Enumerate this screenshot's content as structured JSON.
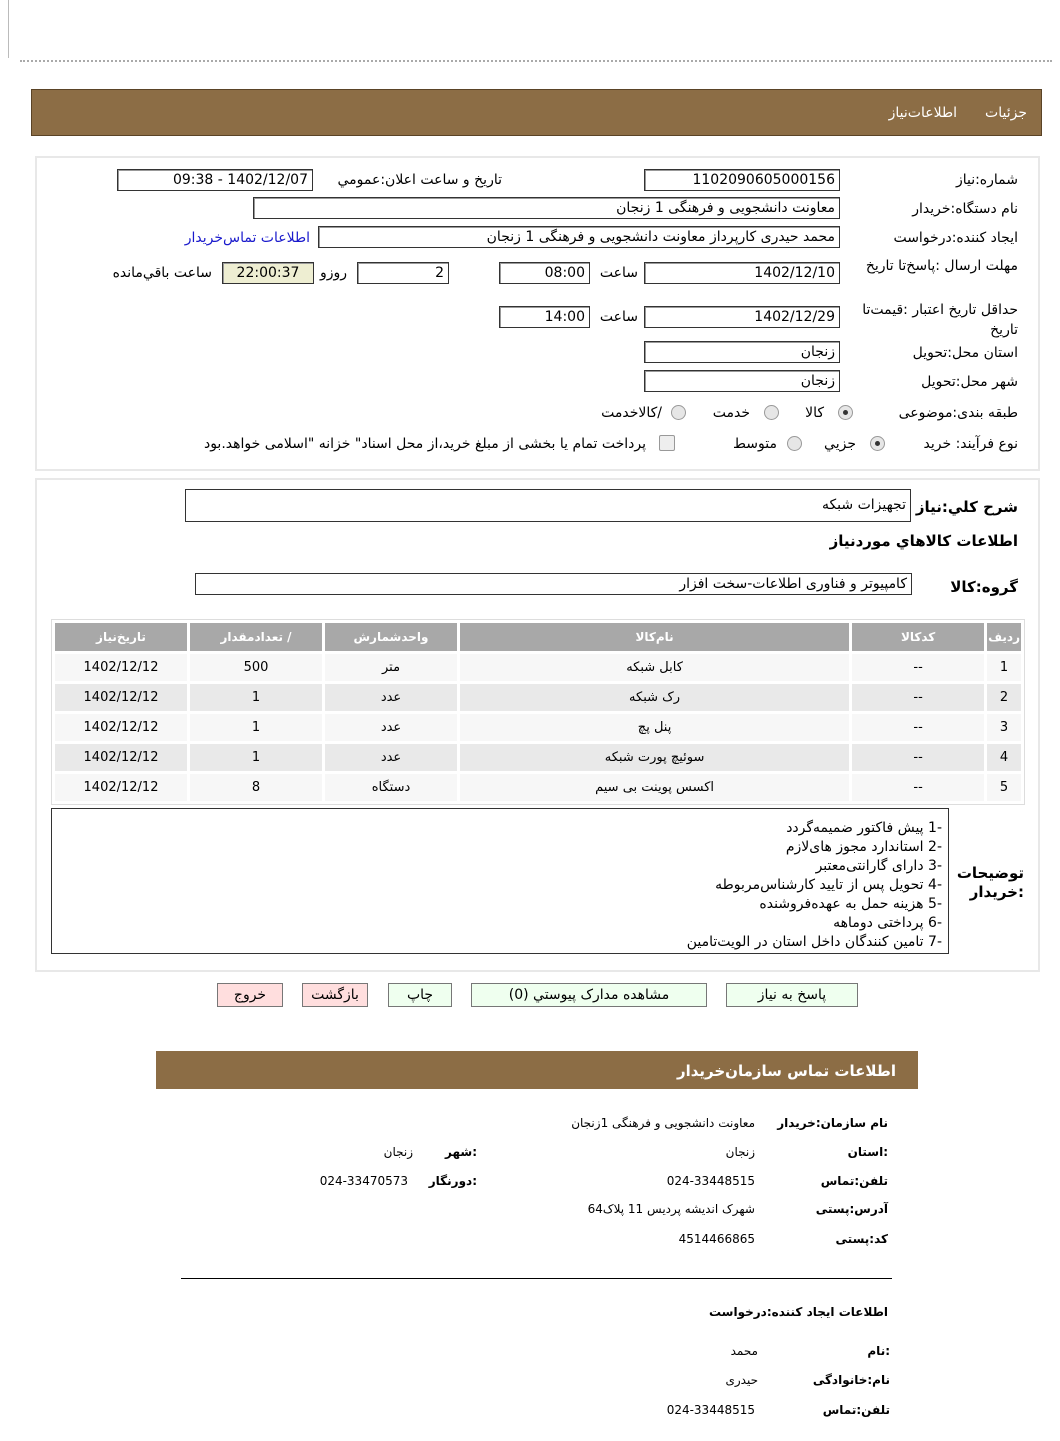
{
  "header": {
    "tab_info": "اطلاعات‌نیاز",
    "tab_details": "جزئیات"
  },
  "form": {
    "need_number_label": "شماره:نیاز",
    "need_number": "1102090605000156",
    "announce_label": "تاریخ و ساعت اعلان:عمومي",
    "announce_value": "1402/12/07 - 09:38",
    "buyer_org_label": "نام دستگاه:خریدار",
    "buyer_org": "معاونت دانشجویی و فرهنگی 1 زنجان",
    "creator_label": "ایجاد کننده:درخواست",
    "creator": "محمد حیدری کارپرداز معاونت دانشجویی و فرهنگی 1 زنجان",
    "buyer_contact_link": "اطلاعات تماس‌خریدار",
    "deadline_label": "مهلت ارسال :پاسخ‌تا تاریخ",
    "deadline_date": "1402/12/10",
    "time_label": "ساعت",
    "deadline_time": "08:00",
    "days": "2",
    "days_label": "روزو",
    "remaining": "22:00:37",
    "remaining_label": "ساعت باقي‌مانده",
    "validity_label": "حداقل تاریخ اعتبار :قیمت‌تا تاریخ",
    "validity_date": "1402/12/29",
    "validity_time": "14:00",
    "province_label": "استان محل:تحویل",
    "province": "زنجان",
    "city_label": "شهر محل:تحویل",
    "city": "زنجان",
    "category_label": "طبقه بندی:موضوعی",
    "category_options": [
      "کالا",
      "خدمت",
      "/کالاخدمت"
    ],
    "category_selected": "کالا",
    "process_label": "نوع فرآیند: خرید",
    "process_options": [
      "جزيي",
      "متوسط"
    ],
    "process_selected": "جزيي",
    "payment_note": "پرداخت تمام یا بخشی از مبلغ خرید،از محل اسناد\" خزانه \"اسلامی خواهد.بود"
  },
  "summary": {
    "label": "شرح کلي:نیاز",
    "value": "تجهیزات شبکه",
    "goods_title": "اطلاعات کالاهاي موردنیاز",
    "group_label": "گروه:کالا",
    "group_value": "کامپیوتر و فناوری اطلاعات-سخت افزار"
  },
  "table": {
    "headers": [
      "ردیف",
      "کدکالا",
      "نام‌کالا",
      "واحدشمارش",
      "/ تعدادمقدار",
      "تاریخ‌نیاز"
    ],
    "rows": [
      [
        "1",
        "--",
        "کابل شبکه",
        "متر",
        "500",
        "1402/12/12"
      ],
      [
        "2",
        "--",
        "رک شبکه",
        "عدد",
        "1",
        "1402/12/12"
      ],
      [
        "3",
        "--",
        "پنل پچ",
        "عدد",
        "1",
        "1402/12/12"
      ],
      [
        "4",
        "--",
        "سوئیچ پورت شبکه",
        "عدد",
        "1",
        "1402/12/12"
      ],
      [
        "5",
        "--",
        "اکسس پوینت بی سیم",
        "دستگاه",
        "8",
        "1402/12/12"
      ]
    ]
  },
  "notes": {
    "label": "توضیحات :خریدار",
    "lines": [
      "-1 پیش فاکتور ضمیمه‌گردد",
      "-2 استاندارد مجوز های‌لازم",
      "-3 دارای گارانتی‌معتبر",
      "-4 تحویل پس از تایید کارشناس‌مربوطه",
      "-5 هزینه حمل به عهده‌فروشنده",
      "-6 پرداختی دوماهه",
      "-7 تامین کنندگان داخل استان در الویت‌تامین"
    ]
  },
  "buttons": {
    "reply": "پاسخ به نیاز",
    "attachments": "مشاهده مدارک پیوستي (0)",
    "print": "چاپ",
    "back": "بازگشت",
    "exit": "خروج"
  },
  "contact": {
    "title": "اطلاعات  تماس سازمان‌خریدار",
    "org_label": "نام سازمان:خریدار",
    "org": "معاونت دانشجویی و فرهنگی 1زنجان",
    "province_label": ":استان",
    "province": "زنجان",
    "city_label": ":شهر",
    "city": "زنجان",
    "phone_label": "تلفن:تماس",
    "phone": "024-33448515",
    "fax_label": ":دورنگار",
    "fax": "024-33470573",
    "address_label": "آدرس:پستی",
    "address": "شهرک اندیشه پردیس 11 پلاک64",
    "postal_label": "کد:پستی",
    "postal": "4514466865",
    "creator_title": "اطلاعات ایجاد کننده:درخواست",
    "name_label": ":نام",
    "name": "محمد",
    "family_label": "نام:خانوادگی",
    "family": "حیدری",
    "creator_phone_label": "تلفن:تماس",
    "creator_phone": "024-33448515"
  }
}
